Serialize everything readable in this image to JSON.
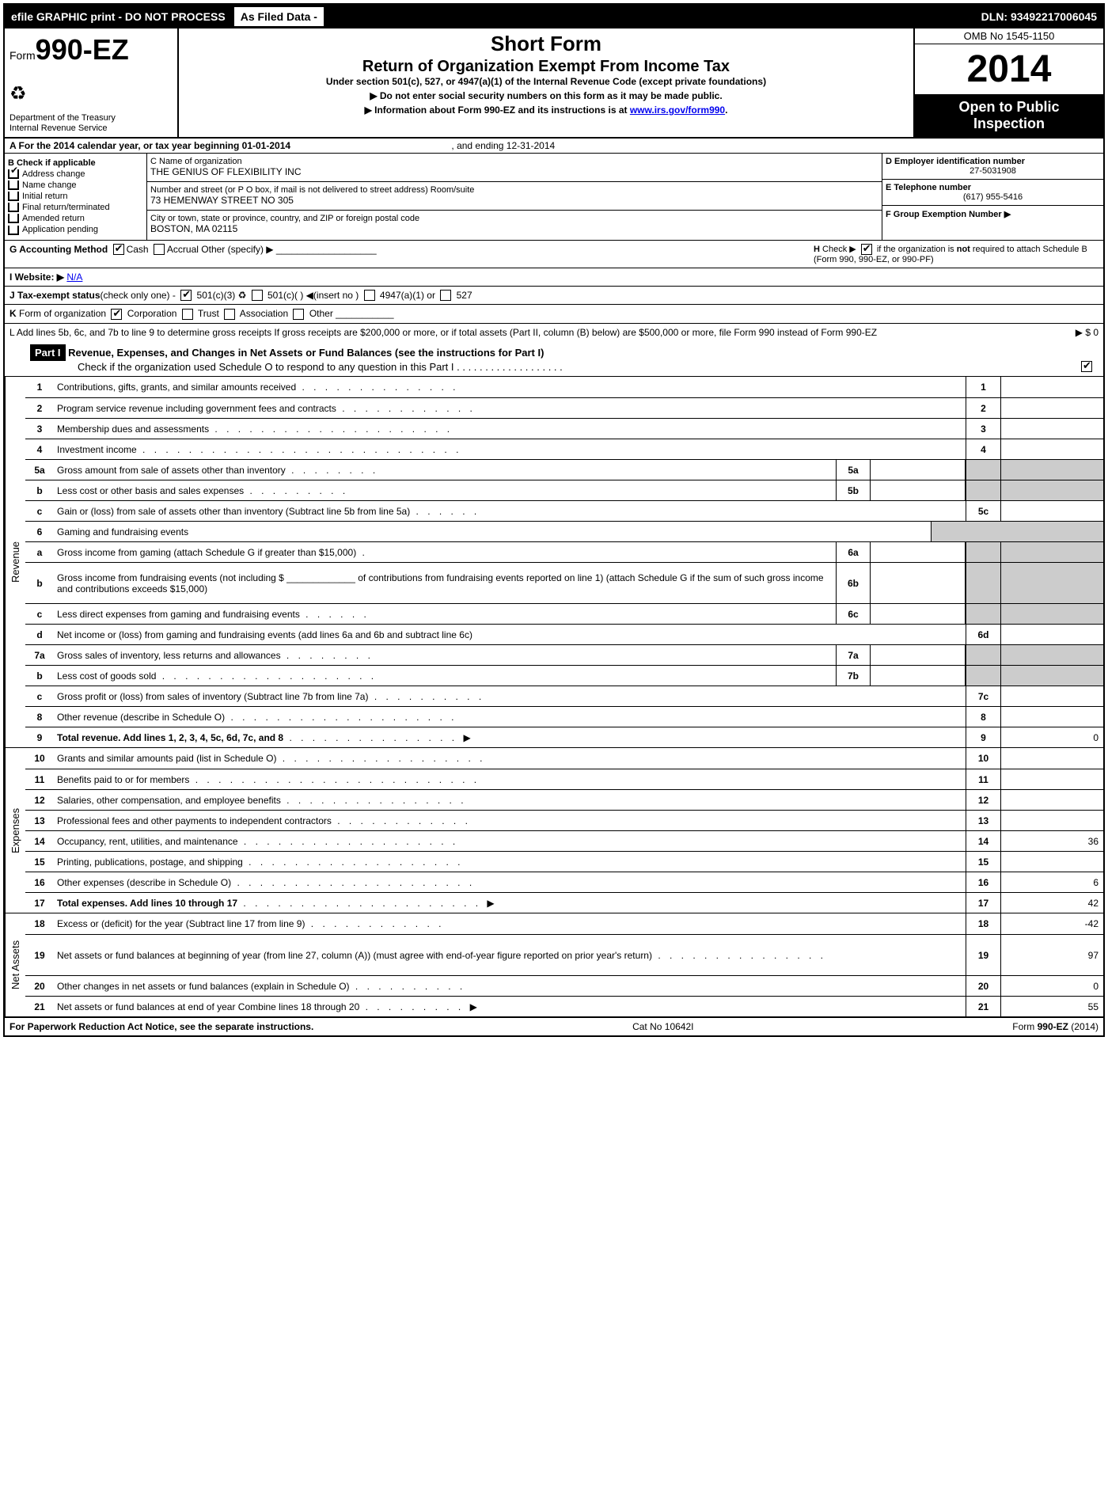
{
  "topbar": {
    "efile": "efile GRAPHIC print - DO NOT PROCESS",
    "asfiled": "As Filed Data -",
    "dln": "DLN: 93492217006045"
  },
  "header": {
    "form_prefix": "Form",
    "form_no": "990-EZ",
    "dept1": "Department of the Treasury",
    "dept2": "Internal Revenue Service",
    "title1": "Short Form",
    "title2": "Return of Organization Exempt From Income Tax",
    "under": "Under section 501(c), 527, or 4947(a)(1) of the Internal Revenue Code (except private foundations)",
    "arrow1": "▶ Do not enter social security numbers on this form as it may be made public.",
    "arrow2_pre": "▶ Information about Form 990-EZ and its instructions is at ",
    "arrow2_link": "www.irs.gov/form990",
    "omb": "OMB No 1545-1150",
    "year": "2014",
    "open1": "Open to Public",
    "open2": "Inspection"
  },
  "lineA": {
    "text_pre": "A  For the 2014 calendar year, or tax year beginning 01-01-2014",
    "text_end": ", and ending 12-31-2014"
  },
  "boxB": {
    "title": "B  Check if applicable",
    "addr": "Address change",
    "name": "Name change",
    "init": "Initial return",
    "final": "Final return/terminated",
    "amend": "Amended return",
    "app": "Application pending"
  },
  "boxC": {
    "c_lbl": "C Name of organization",
    "c_val": "THE GENIUS OF FLEXIBILITY INC",
    "street_lbl": "Number and street (or P O box, if mail is not delivered to street address) Room/suite",
    "street_val": "73 HEMENWAY STREET NO 305",
    "city_lbl": "City or town, state or province, country, and ZIP or foreign postal code",
    "city_val": "BOSTON, MA 02115"
  },
  "boxD": {
    "d_lbl": "D Employer identification number",
    "d_val": "27-5031908",
    "e_lbl": "E Telephone number",
    "e_val": "(617) 955-5416",
    "f_lbl": "F Group Exemption Number  ▶"
  },
  "g": {
    "label": "G Accounting Method",
    "cash": "Cash",
    "accr": "Accrual",
    "other": "Other (specify) ▶",
    "h_text": "H  Check ▶           if the organization is not required to attach Schedule B (Form 990, 990-EZ, or 990-PF)"
  },
  "i": {
    "label": "I Website: ▶",
    "val": "N/A"
  },
  "j": {
    "text": "J Tax-exempt status(check only one) -        501(c)(3)        501(c)(  )  ◀(insert no )     4947(a)(1) or      527"
  },
  "k": {
    "text": "K Form of organization         Corporation      Trust      Association      Other"
  },
  "l": {
    "text": "L Add lines 5b, 6c, and 7b to line 9 to determine gross receipts  If gross receipts are $200,000 or more, or if total assets (Part II, column (B) below) are $500,000 or more, file Form 990 instead of Form 990-EZ",
    "amt": "▶ $ 0"
  },
  "part1": {
    "label": "Part I",
    "title": "Revenue, Expenses, and Changes in Net Assets or Fund Balances (see the instructions for Part I)",
    "sub": "Check if the organization used Schedule O to respond to any question in this Part I  . . . . . . . . . . . . . . . . . . .",
    "sub_ck": "✔"
  },
  "sections": {
    "revenue": "Revenue",
    "expenses": "Expenses",
    "netassets": "Net Assets"
  },
  "lines": [
    {
      "n": "1",
      "d": "Contributions, gifts, grants, and similar amounts received",
      "dots": ". . . . . . . . . . . . . .",
      "r": "1",
      "v": ""
    },
    {
      "n": "2",
      "d": "Program service revenue including government fees and contracts",
      "dots": ". . . . . . . . . . . .",
      "r": "2",
      "v": ""
    },
    {
      "n": "3",
      "d": "Membership dues and assessments",
      "dots": ". . . . . . . . . . . . . . . . . . . . .",
      "r": "3",
      "v": ""
    },
    {
      "n": "4",
      "d": "Investment income",
      "dots": ". . . . . . . . . . . . . . . . . . . . . . . . . . . .",
      "r": "4",
      "v": ""
    },
    {
      "n": "5a",
      "d": "Gross amount from sale of assets other than inventory",
      "dots": ". . . . . . . .",
      "sub": "5a",
      "grey": true
    },
    {
      "n": "b",
      "d": "Less  cost or other basis and sales expenses",
      "dots": ". . . . . . . . .",
      "sub": "5b",
      "grey": true
    },
    {
      "n": "c",
      "d": "Gain or (loss) from sale of assets other than inventory (Subtract line 5b from line 5a)",
      "dots": ". . . . . .",
      "r": "5c",
      "v": ""
    },
    {
      "n": "6",
      "d": "Gaming and fundraising events",
      "grey": true,
      "full": true
    },
    {
      "n": "a",
      "d": "Gross income from gaming (attach Schedule G if greater than $15,000)",
      "dots": ".",
      "sub": "6a",
      "grey": true
    },
    {
      "n": "b",
      "d": "Gross income from fundraising events (not including $ _____________ of contributions from fundraising events reported on line 1) (attach Schedule G if the sum of such gross income and contributions exceeds $15,000)",
      "sub": "6b",
      "grey": true,
      "tall": true
    },
    {
      "n": "c",
      "d": "Less  direct expenses from gaming and fundraising events",
      "dots": ". . . . . .",
      "sub": "6c",
      "grey": true
    },
    {
      "n": "d",
      "d": "Net income or (loss) from gaming and fundraising events (add lines 6a and 6b and subtract line 6c)",
      "r": "6d",
      "v": ""
    },
    {
      "n": "7a",
      "d": "Gross sales of inventory, less returns and allowances",
      "dots": ". . . . . . . .",
      "sub": "7a",
      "grey": true
    },
    {
      "n": "b",
      "d": "Less  cost of goods sold",
      "dots": ". . . . . . . . . . . . . . . . . . .",
      "sub": "7b",
      "grey": true
    },
    {
      "n": "c",
      "d": "Gross profit or (loss) from sales of inventory (Subtract line 7b from line 7a)",
      "dots": ". . . . . . . . . .",
      "r": "7c",
      "v": ""
    },
    {
      "n": "8",
      "d": "Other revenue (describe in Schedule O)",
      "dots": ". . . . . . . . . . . . . . . . . . . .",
      "r": "8",
      "v": ""
    },
    {
      "n": "9",
      "d": "Total revenue. Add lines 1, 2, 3, 4, 5c, 6d, 7c, and 8",
      "dots": ". . . . . . . . . . . . . . .  ▶",
      "r": "9",
      "v": "0",
      "bold": true
    }
  ],
  "exp_lines": [
    {
      "n": "10",
      "d": "Grants and similar amounts paid (list in Schedule O)",
      "dots": ". . . . . . . . . . . . . . . . . .",
      "r": "10",
      "v": ""
    },
    {
      "n": "11",
      "d": "Benefits paid to or for members",
      "dots": ". . . . . . . . . . . . . . . . . . . . . . . . .",
      "r": "11",
      "v": ""
    },
    {
      "n": "12",
      "d": "Salaries, other compensation, and employee benefits",
      "dots": ". . . . . . . . . . . . . . . .",
      "r": "12",
      "v": ""
    },
    {
      "n": "13",
      "d": "Professional fees and other payments to independent contractors",
      "dots": ". . . . . . . . . . . .",
      "r": "13",
      "v": ""
    },
    {
      "n": "14",
      "d": "Occupancy, rent, utilities, and maintenance",
      "dots": ". . . . . . . . . . . . . . . . . . .",
      "r": "14",
      "v": "36"
    },
    {
      "n": "15",
      "d": "Printing, publications, postage, and shipping",
      "dots": ". . . . . . . . . . . . . . . . . . .",
      "r": "15",
      "v": ""
    },
    {
      "n": "16",
      "d": "Other expenses (describe in Schedule O)",
      "dots": ". . . . . . . . . . . . . . . . . . . . .",
      "r": "16",
      "v": "6"
    },
    {
      "n": "17",
      "d": "Total expenses. Add lines 10 through 17",
      "dots": ". . . . . . . . . . . . . . . . . . . . .  ▶",
      "r": "17",
      "v": "42",
      "bold": true
    }
  ],
  "na_lines": [
    {
      "n": "18",
      "d": "Excess or (deficit) for the year (Subtract line 17 from line 9)",
      "dots": ". . . . . . . . . . . .",
      "r": "18",
      "v": "-42"
    },
    {
      "n": "19",
      "d": "Net assets or fund balances at beginning of year (from line 27, column (A)) (must agree with end-of-year figure reported on prior year's return)",
      "dots": ". . . . . . . . . . . . . . .",
      "r": "19",
      "v": "97",
      "tall": true
    },
    {
      "n": "20",
      "d": "Other changes in net assets or fund balances (explain in Schedule O)",
      "dots": ". . . . . . . . . .",
      "r": "20",
      "v": "0"
    },
    {
      "n": "21",
      "d": "Net assets or fund balances at end of year  Combine lines 18 through 20",
      "dots": ". . . . . . . . .  ▶",
      "r": "21",
      "v": "55"
    }
  ],
  "footer": {
    "left": "For Paperwork Reduction Act Notice, see the separate instructions.",
    "center": "Cat No 10642I",
    "right": "Form 990-EZ (2014)"
  }
}
